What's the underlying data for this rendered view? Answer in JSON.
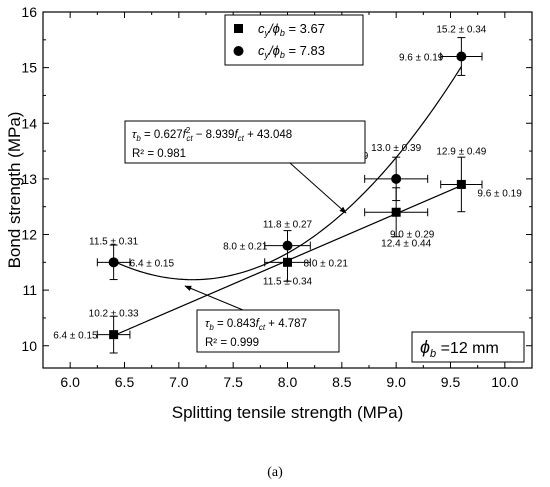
{
  "caption": "(a)",
  "chart_data": {
    "type": "scatter",
    "xlabel": "Splitting tensile strength (MPa)",
    "ylabel": "Bond strength (MPa)",
    "xlim": [
      5.75,
      10.25
    ],
    "ylim": [
      9.6,
      16
    ],
    "xticks": [
      "6.0",
      "6.5",
      "7.0",
      "7.5",
      "8.0",
      "8.5",
      "9.0",
      "9.5",
      "10.0"
    ],
    "yticks": [
      "10",
      "11",
      "12",
      "13",
      "14",
      "15",
      "16"
    ],
    "legend_position": "top-left",
    "grid": false,
    "series": [
      {
        "name": "c_y/ϕ_b = 3.67",
        "legend_prefix": "c",
        "legend_sub1": "y",
        "legend_mid": "/ϕ",
        "legend_sub2": "b",
        "legend_value": " = 3.67",
        "marker": "square",
        "points": [
          {
            "x": 6.4,
            "y": 10.2,
            "xerr": 0.15,
            "yerr": 0.33,
            "ylabel_text": "10.2 ± 0.33",
            "xlabel_text": "6.4 ± 0.15"
          },
          {
            "x": 8.0,
            "y": 11.5,
            "xerr": 0.21,
            "yerr": 0.34,
            "ylabel_text": "11.5 ± 0.34",
            "xlabel_text": "8.0 ± 0.21"
          },
          {
            "x": 9.0,
            "y": 12.4,
            "xerr": 0.29,
            "yerr": 0.44,
            "ylabel_text": "12.4 ± 0.44",
            "xlabel_text": "9.0 ± 0.29"
          },
          {
            "x": 9.6,
            "y": 12.9,
            "xerr": 0.19,
            "yerr": 0.49,
            "ylabel_text": "12.9 ± 0.49",
            "xlabel_text": "9.6 ± 0.19"
          }
        ],
        "fit": {
          "type": "linear",
          "a": 0.843,
          "b": 4.787,
          "x_range": [
            6.4,
            9.6
          ],
          "eq_prefix": "τ",
          "eq_sub": "b",
          "eq_rest": " = 0.843",
          "eq_f": "f",
          "eq_fsub": "ct",
          "eq_tail": " + 4.787",
          "r2_text": "R² = 0.999"
        }
      },
      {
        "name": "c_y/ϕ_b = 7.83",
        "legend_prefix": "c",
        "legend_sub1": "y",
        "legend_mid": "/ϕ",
        "legend_sub2": "b",
        "legend_value": " = 7.83",
        "marker": "circle",
        "points": [
          {
            "x": 6.4,
            "y": 11.5,
            "xerr": 0.15,
            "yerr": 0.31,
            "ylabel_text": "11.5 ± 0.31",
            "xlabel_text": "6.4 ± 0.15"
          },
          {
            "x": 8.0,
            "y": 11.8,
            "xerr": 0.21,
            "yerr": 0.27,
            "ylabel_text": "11.8 ± 0.27",
            "xlabel_text": "8.0 ± 0.21"
          },
          {
            "x": 9.0,
            "y": 13.0,
            "xerr": 0.29,
            "yerr": 0.39,
            "ylabel_text": "13.0 ± 0.39",
            "xlabel_text": "9.0 ± 0.29"
          },
          {
            "x": 9.6,
            "y": 15.2,
            "xerr": 0.19,
            "yerr": 0.34,
            "ylabel_text": "15.2 ± 0.34",
            "xlabel_text": "9.6 ± 0.19"
          }
        ],
        "fit": {
          "type": "quadratic",
          "a": 0.627,
          "b": -8.939,
          "c": 43.048,
          "x_range": [
            6.4,
            9.6
          ],
          "eq_prefix": "τ",
          "eq_sub": "b",
          "eq_rest": " = 0.627",
          "eq_f": "f",
          "eq_fsub": "ct",
          "eq_sup": "2",
          "eq_mid": " − 8.939",
          "eq_f2": "f",
          "eq_fsub2": "ct",
          "eq_tail": " + 43.048",
          "r2_text": "R² = 0.981"
        }
      }
    ],
    "annotation": {
      "symbol": "ϕ",
      "sub": "b",
      "text": " =12 mm"
    }
  }
}
